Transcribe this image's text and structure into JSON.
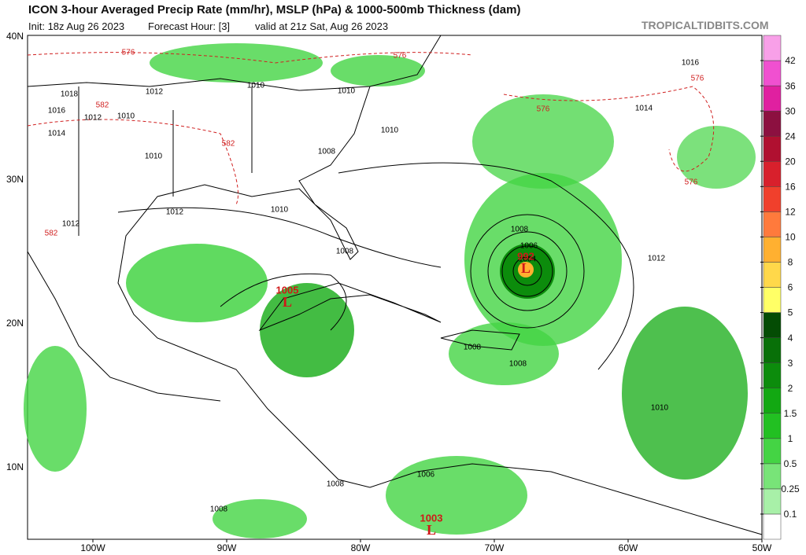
{
  "header": {
    "title": "ICON 3-hour Averaged Precip Rate (mm/hr), MSLP (hPa) & 1000-500mb Thickness (dam)",
    "init": "Init: 18z Aug 26 2023",
    "forecast_hour": "Forecast Hour: [3]",
    "valid": "valid at 21z Sat, Aug 26 2023",
    "credit": "TROPICALTIDBITS.COM"
  },
  "map": {
    "lat_labels": [
      "40N",
      "30N",
      "20N",
      "10N"
    ],
    "lon_labels": [
      "100W",
      "90W",
      "80W",
      "70W",
      "60W",
      "50W"
    ],
    "isobar_labels": [
      "1018",
      "1016",
      "1014",
      "1012",
      "1012",
      "1010",
      "1010",
      "1012",
      "1010",
      "1008",
      "1010",
      "1010",
      "1010",
      "1012",
      "1008",
      "1008",
      "1006",
      "1004",
      "1008",
      "1008",
      "1016",
      "1014",
      "1012",
      "1010",
      "1008",
      "1006",
      "1008"
    ],
    "thickness_labels": [
      "576",
      "582",
      "582",
      "576",
      "576",
      "576",
      "576",
      "582"
    ],
    "lows": [
      {
        "pressure": "1005",
        "symbol": "L"
      },
      {
        "pressure": "992",
        "symbol": "L"
      },
      {
        "pressure": "1003",
        "symbol": "L"
      }
    ]
  },
  "colorbar": {
    "labels": [
      0.1,
      0.25,
      0.5,
      1,
      1.5,
      2,
      3,
      4,
      5,
      6,
      8,
      10,
      12,
      16,
      20,
      24,
      30,
      36,
      42
    ],
    "colors": [
      "#ffffff",
      "#a8f0a8",
      "#78e478",
      "#44d444",
      "#22c022",
      "#12a812",
      "#0c8c0c",
      "#087008",
      "#044c04",
      "#ffff66",
      "#ffd84a",
      "#ffb030",
      "#ff7a3c",
      "#f0402c",
      "#d8202c",
      "#b01030",
      "#8c1040",
      "#e020a0",
      "#f050d0",
      "#f8a0e8"
    ]
  }
}
